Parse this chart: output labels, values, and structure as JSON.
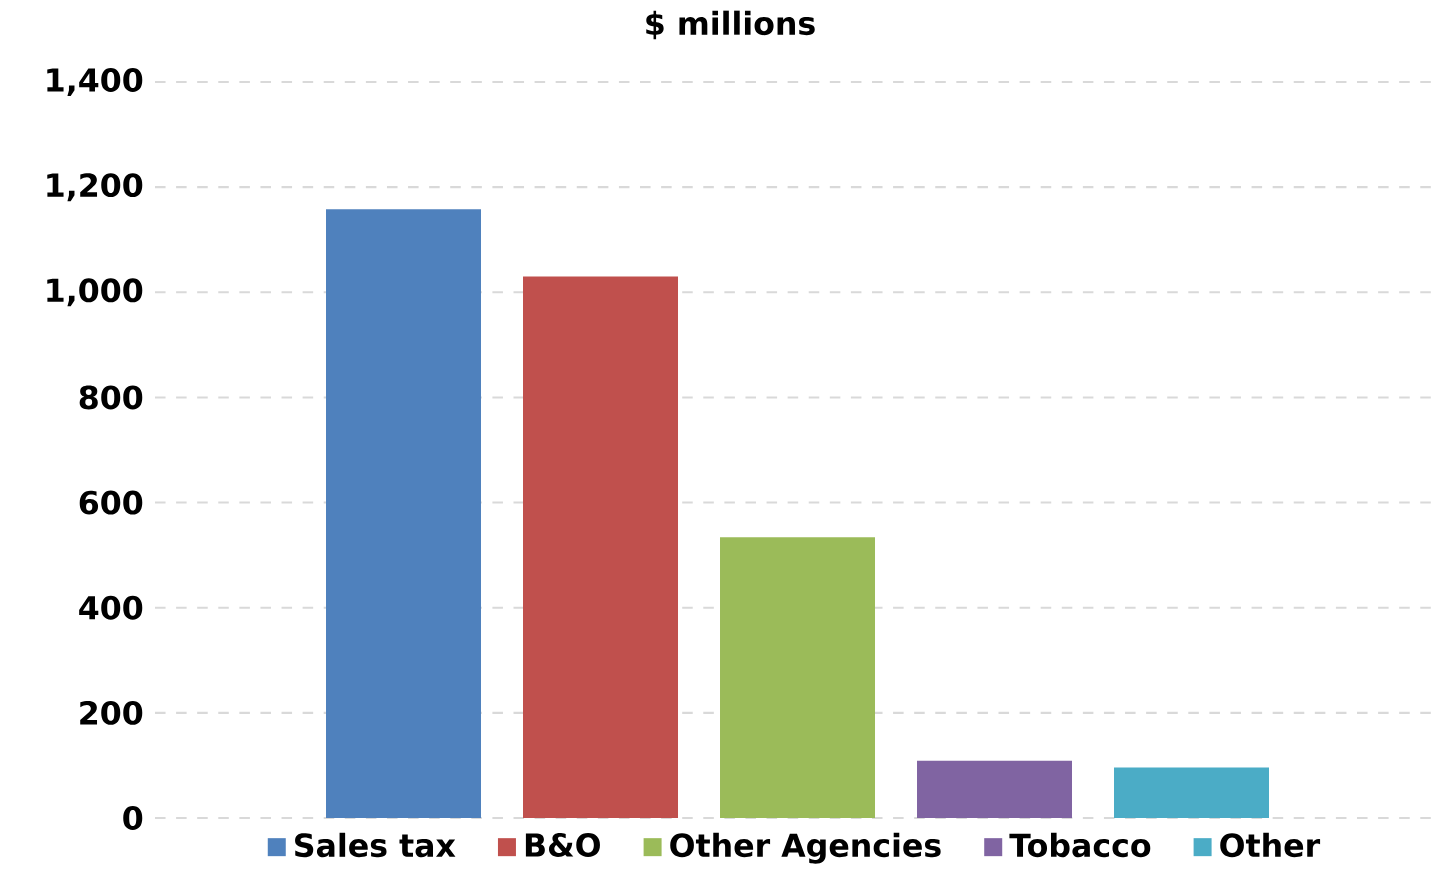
{
  "chart_data": {
    "type": "bar",
    "title": "$ millions",
    "categories": [
      null
    ],
    "series": [
      {
        "name": "Sales tax",
        "color": "#4f81bd",
        "values": [
          1158
        ]
      },
      {
        "name": "B&O",
        "color": "#c0504d",
        "values": [
          1030
        ]
      },
      {
        "name": "Other Agencies",
        "color": "#9bbb59",
        "values": [
          534
        ]
      },
      {
        "name": "Tobacco",
        "color": "#8064a2",
        "values": [
          109
        ]
      },
      {
        "name": "Other",
        "color": "#4bacc6",
        "values": [
          96
        ]
      }
    ],
    "ylim": [
      0,
      1400
    ],
    "yticks": [
      0,
      200,
      400,
      600,
      800,
      {
        "value": 1000,
        "label": "1,000"
      },
      {
        "value": 1200,
        "label": "1,200"
      },
      {
        "value": 1400,
        "label": "1,400"
      }
    ],
    "grid": "y",
    "legend": "bottom"
  }
}
